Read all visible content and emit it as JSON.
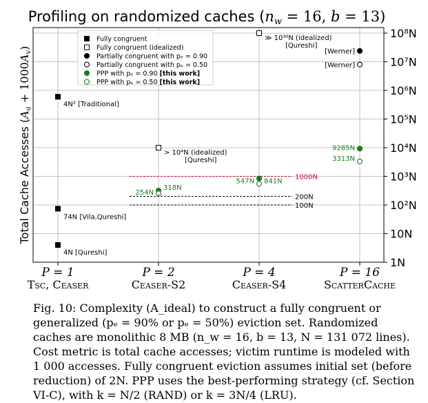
{
  "chart_data": {
    "type": "scatter",
    "title": "Profiling on randomized caches (n_w = 16, b = 13)",
    "ylabel": "Total Cache Accesses (A_a + 1000A_v)",
    "y_scale": "log",
    "ylim": [
      1,
      100000000
    ],
    "grid": true,
    "legend_position": "top-left",
    "y_ticks": [
      "1N",
      "10N",
      "10²N",
      "10³N",
      "10⁴N",
      "10⁵N",
      "10⁶N",
      "10⁷N",
      "10⁸N"
    ],
    "categories": [
      {
        "top": "P = 1",
        "bottom": "Tsc, Ceaser"
      },
      {
        "top": "P = 2",
        "bottom": "Ceaser-S2"
      },
      {
        "top": "P = 4",
        "bottom": "Ceaser-S4"
      },
      {
        "top": "P = 16",
        "bottom": "ScatterCache"
      }
    ],
    "legend": [
      {
        "series": "fully",
        "label": "Fully congruent",
        "bold_suffix": ""
      },
      {
        "series": "fully_ideal",
        "label": "Fully congruent (idealized)",
        "bold_suffix": ""
      },
      {
        "series": "partial90",
        "label": "Partially congruent with pₑ = 0.90",
        "bold_suffix": ""
      },
      {
        "series": "partial50",
        "label": "Partially congruent with pₑ = 0.50",
        "bold_suffix": ""
      },
      {
        "series": "ppp90",
        "label": "PPP with pₑ = 0.90 ",
        "bold_suffix": "[this work]"
      },
      {
        "series": "ppp50",
        "label": "PPP with pₑ = 0.50 ",
        "bold_suffix": "[this work]"
      }
    ],
    "series": [
      {
        "key": "fully",
        "marker": "square",
        "filled": true,
        "color": "#000000",
        "points": [
          {
            "cat": 0,
            "y": 600000,
            "label": "4N² [Traditional]"
          },
          {
            "cat": 0,
            "y": 74,
            "label": "74N [Vila,Qureshi]"
          },
          {
            "cat": 0,
            "y": 4,
            "label": "4N [Qureshi]"
          }
        ]
      },
      {
        "key": "fully_ideal",
        "marker": "square",
        "filled": false,
        "color": "#000000",
        "points": [
          {
            "cat": 1,
            "y": 10000,
            "label": "> 10⁴N (idealized)",
            "label2": "[Qureshi]"
          },
          {
            "cat": 2,
            "y": 100000000,
            "label": "≫ 10³⁰N (idealized)",
            "label2": "[Qureshi]"
          }
        ]
      },
      {
        "key": "partial90",
        "marker": "circle",
        "filled": true,
        "color": "#000000",
        "points": [
          {
            "cat": 3,
            "y": 24000000,
            "label": "[Werner]"
          }
        ]
      },
      {
        "key": "partial50",
        "marker": "circle",
        "filled": false,
        "color": "#000000",
        "points": [
          {
            "cat": 3,
            "y": 8000000,
            "label": "[Werner]"
          }
        ]
      },
      {
        "key": "ppp90",
        "marker": "circle",
        "filled": true,
        "color": "#1a7a1a",
        "points": [
          {
            "cat": 1,
            "y": 318,
            "label": "318N"
          },
          {
            "cat": 2,
            "y": 841,
            "label": "841N"
          },
          {
            "cat": 3,
            "y": 9285,
            "label": "9285N"
          }
        ]
      },
      {
        "key": "ppp50",
        "marker": "circle",
        "filled": false,
        "color": "#1a7a1a",
        "points": [
          {
            "cat": 1,
            "y": 254,
            "label": "254N"
          },
          {
            "cat": 2,
            "y": 547,
            "label": "547N"
          },
          {
            "cat": 3,
            "y": 3313,
            "label": "3313N"
          }
        ]
      }
    ],
    "reference_lines": [
      {
        "y": 1000,
        "label": "1000N",
        "color": "#cc0033"
      },
      {
        "y": 200,
        "label": "200N",
        "color": "#000000"
      },
      {
        "y": 100,
        "label": "100N",
        "color": "#000000"
      }
    ]
  },
  "caption": {
    "fig_label": "Fig. 10:",
    "text": "Complexity (A_ideal) to construct a fully congruent or generalized (pₑ = 90% or pₑ = 50%) eviction set. Randomized caches are monolithic 8 MB (n_w = 16, b = 13, N = 131 072 lines). Cost metric is total cache accesses; victim runtime is modeled with 1 000 accesses. Fully congruent eviction assumes initial set (before reduction) of 2N. PPP uses the best-performing strategy (cf. Section VI-C), with k = N/2 (RAND) or k = 3N/4 (LRU)."
  }
}
